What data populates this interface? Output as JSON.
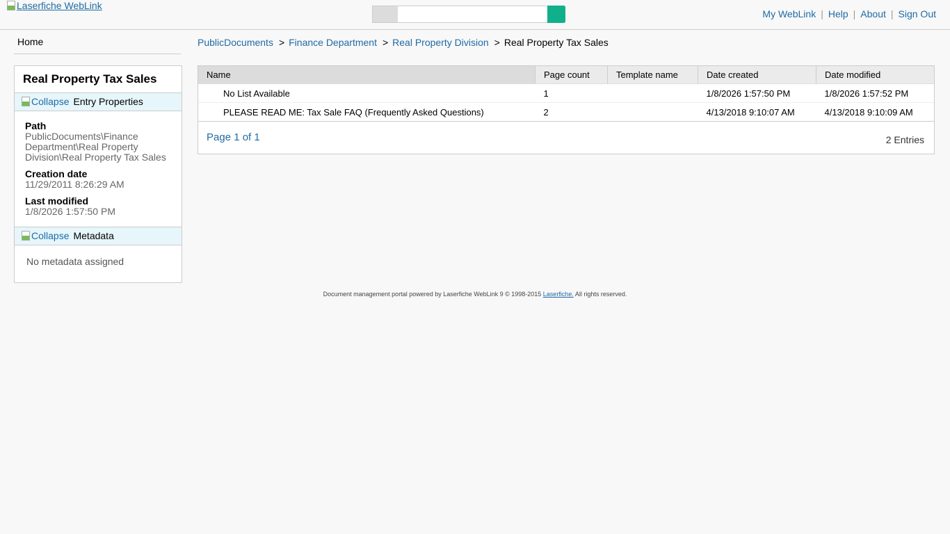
{
  "header": {
    "logo_alt": "Laserfiche WebLink",
    "links": [
      "My WebLink",
      "Help",
      "About",
      "Sign Out"
    ]
  },
  "sidebar": {
    "home": "Home",
    "title": "Real Property Tax Sales",
    "collapse": "Collapse",
    "entry_props": {
      "label": "Entry Properties",
      "path_label": "Path",
      "path": "PublicDocuments\\Finance Department\\Real Property Division\\Real Property Tax Sales",
      "created_label": "Creation date",
      "created": "11/29/2011 8:26:29 AM",
      "modified_label": "Last modified",
      "modified": "1/8/2026 1:57:50 PM"
    },
    "metadata": {
      "label": "Metadata",
      "empty": "No metadata assigned"
    }
  },
  "breadcrumb": [
    "PublicDocuments",
    "Finance Department",
    "Real Property Division",
    "Real Property Tax Sales"
  ],
  "breadcrumb_sep": ">",
  "table": {
    "columns": [
      "Name",
      "Page count",
      "Template name",
      "Date created",
      "Date modified"
    ],
    "rows": [
      [
        "No List Available",
        "1",
        "",
        "1/8/2026 1:57:50 PM",
        "1/8/2026 1:57:52 PM"
      ],
      [
        "PLEASE READ ME: Tax Sale FAQ (Frequently Asked Questions)",
        "2",
        "",
        "4/13/2018 9:10:07 AM",
        "4/13/2018 9:10:09 AM"
      ]
    ],
    "pager": "Page 1 of 1",
    "count": "2 Entries"
  },
  "footer": {
    "text": "Document management portal powered by Laserfiche WebLink 9 © 1998-2015",
    "link": "Laserfiche.",
    "suffix": " All rights reserved."
  }
}
